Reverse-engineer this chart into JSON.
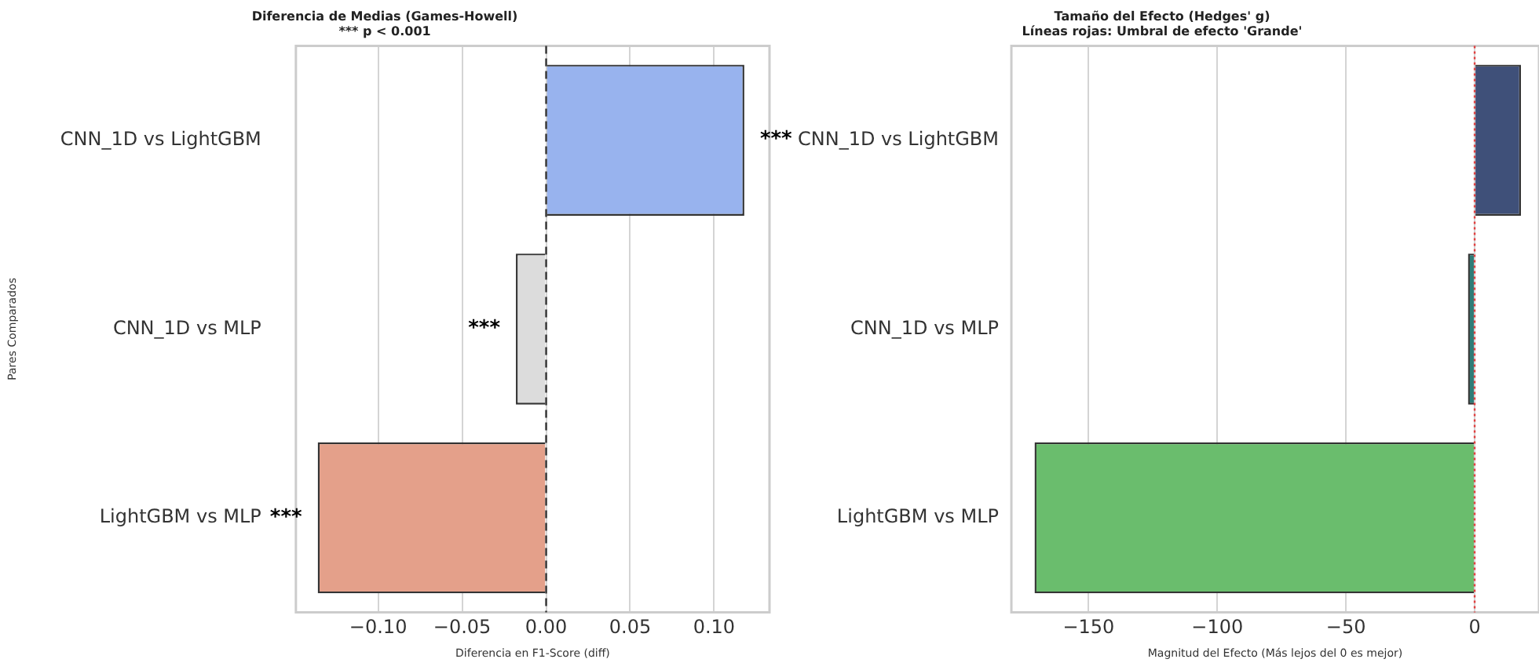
{
  "chart_data": [
    {
      "type": "bar",
      "orientation": "horizontal",
      "title": "Diferencia de Medias (Games-Howell)",
      "subtitle": "*** p < 0.001",
      "xlabel": "Diferencia en F1-Score (diff)",
      "ylabel": "Pares Comparados",
      "categories": [
        "CNN_1D vs LightGBM",
        "CNN_1D vs MLP",
        "LightGBM vs MLP"
      ],
      "values": [
        0.118,
        -0.018,
        -0.136
      ],
      "colors": [
        "#98b3ee",
        "#dcdcdc",
        "#e4a08a"
      ],
      "xlim": [
        -0.149,
        0.133
      ],
      "xticks": [
        {
          "value": -0.1,
          "label": "−0.10"
        },
        {
          "value": -0.05,
          "label": "−0.05"
        },
        {
          "value": 0,
          "label": "0.00"
        },
        {
          "value": 0.05,
          "label": "0.05"
        },
        {
          "value": 0.1,
          "label": "0.10"
        }
      ],
      "grid": "x",
      "ref_lines": [
        {
          "axis": "x",
          "value": 0,
          "color": "#333333",
          "line_style": "dashed"
        }
      ],
      "annotations": [
        {
          "text": "***",
          "x": 0.118,
          "y": "CNN_1D vs LightGBM"
        },
        {
          "text": "***",
          "x": -0.018,
          "y": "CNN_1D vs MLP"
        },
        {
          "text": "***",
          "x": -0.136,
          "y": "LightGBM vs MLP"
        }
      ]
    },
    {
      "type": "bar",
      "orientation": "horizontal",
      "title": "Tamaño del Efecto (Hedges' g)",
      "subtitle": "Líneas rojas: Umbral de efecto 'Grande'",
      "xlabel": "Magnitud del Efecto (Más lejos del 0 es mejor)",
      "categories": [
        "CNN_1D vs LightGBM",
        "CNN_1D vs MLP",
        "LightGBM vs MLP"
      ],
      "values": [
        18,
        -2.6,
        -171
      ],
      "colors": [
        "#3f5079",
        "#2f7d78",
        "#6abd6d"
      ],
      "xlim": [
        -180,
        25
      ],
      "xticks": [
        {
          "value": -150,
          "label": "−150"
        },
        {
          "value": -100,
          "label": "−100"
        },
        {
          "value": -50,
          "label": "−50"
        },
        0
      ],
      "grid": "x",
      "ref_lines": [
        {
          "axis": "x",
          "value": 0,
          "color": "#e04040",
          "line_style": "dotted"
        }
      ]
    }
  ]
}
